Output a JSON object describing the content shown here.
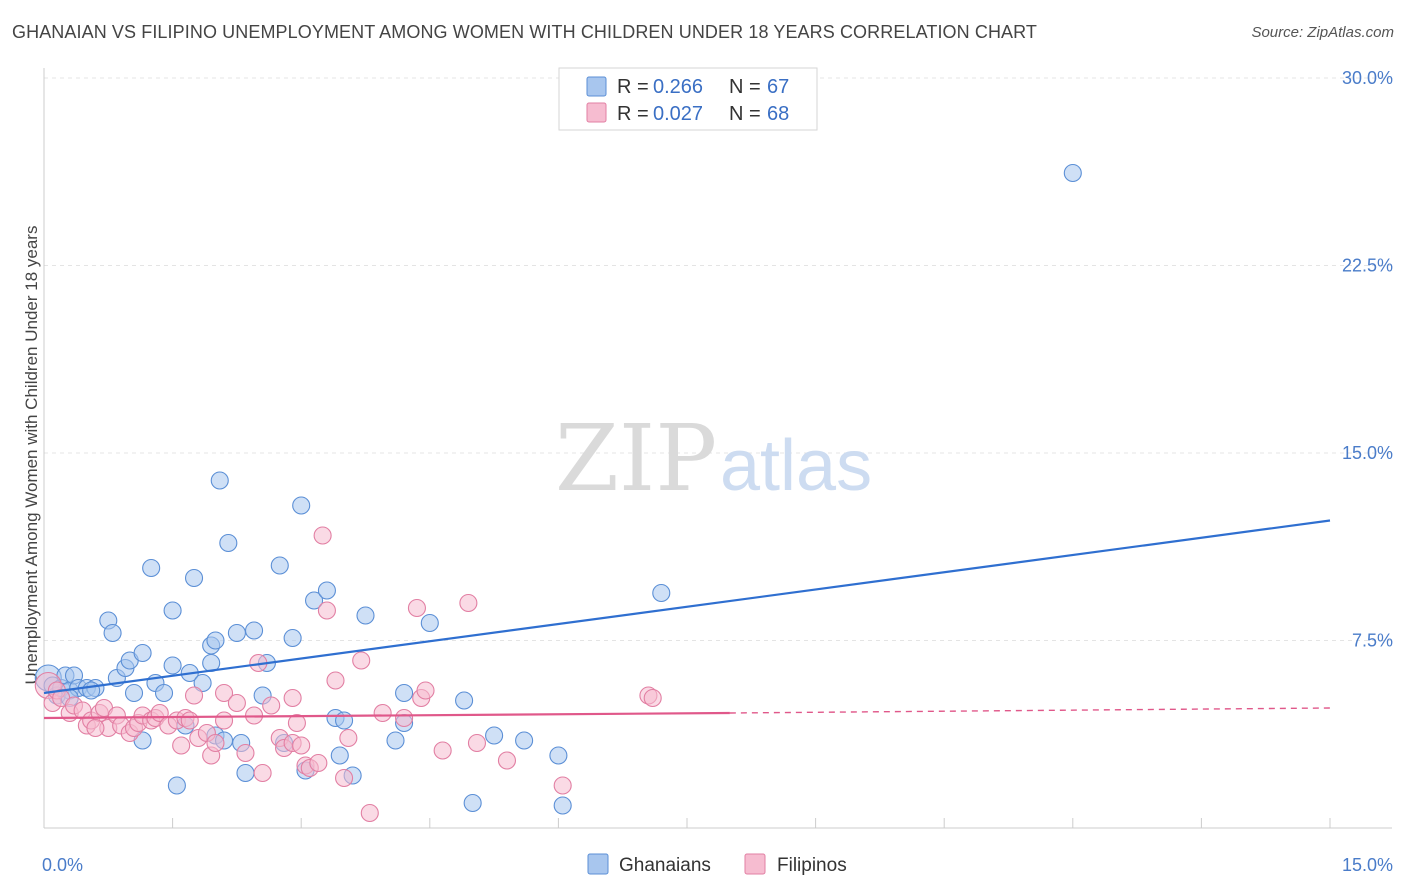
{
  "title": "GHANAIAN VS FILIPINO UNEMPLOYMENT AMONG WOMEN WITH CHILDREN UNDER 18 YEARS CORRELATION CHART",
  "source": "Source: ZipAtlas.com",
  "watermark": {
    "zip": "ZIP",
    "atlas": "atlas"
  },
  "legend": {
    "rows": [
      {
        "r_label": "R =",
        "r_value": "0.266",
        "n_label": "N =",
        "n_value": "67"
      },
      {
        "r_label": "R =",
        "r_value": "0.027",
        "n_label": "N =",
        "n_value": "68"
      }
    ]
  },
  "bottom_legend": [
    "Ghanaians",
    "Filipinos"
  ],
  "colors": {
    "ghanaians_fill": "#a8c6ee",
    "ghanaians_stroke": "#5b8fd6",
    "ghanaians_line": "#2f6fd0",
    "filipinos_fill": "#f6bcd0",
    "filipinos_stroke": "#e27fa3",
    "filipinos_line": "#e0588a",
    "tick_label": "#4a7cc9",
    "grid": "#e4e4e4"
  },
  "chart_data": {
    "type": "scatter",
    "title": "GHANAIAN VS FILIPINO UNEMPLOYMENT AMONG WOMEN WITH CHILDREN UNDER 18 YEARS CORRELATION CHART",
    "xlabel": "",
    "ylabel": "Unemployment Among Women with Children Under 18 years",
    "xlim": [
      0,
      15
    ],
    "ylim": [
      0,
      30
    ],
    "x_ticks": [
      0,
      15
    ],
    "x_tick_labels": [
      "0.0%",
      "15.0%"
    ],
    "y_ticks": [
      7.5,
      15,
      22.5,
      30
    ],
    "y_tick_labels": [
      "7.5%",
      "15.0%",
      "22.5%",
      "30.0%"
    ],
    "grid": true,
    "legend_position": "top-center",
    "series": [
      {
        "name": "Ghanaians",
        "r": 0.266,
        "n": 67,
        "trend": {
          "x": [
            0.0,
            15.0
          ],
          "y": [
            5.4,
            12.3
          ]
        },
        "points": [
          [
            0.05,
            6.0
          ],
          [
            0.1,
            5.7
          ],
          [
            0.15,
            5.3
          ],
          [
            0.2,
            5.6
          ],
          [
            0.25,
            6.1
          ],
          [
            0.3,
            5.5
          ],
          [
            0.35,
            6.1
          ],
          [
            0.4,
            5.6
          ],
          [
            0.5,
            5.6
          ],
          [
            0.6,
            5.6
          ],
          [
            0.75,
            8.3
          ],
          [
            0.8,
            7.8
          ],
          [
            0.85,
            6.0
          ],
          [
            0.95,
            6.4
          ],
          [
            1.0,
            6.7
          ],
          [
            1.05,
            5.4
          ],
          [
            1.15,
            3.5
          ],
          [
            1.15,
            7.0
          ],
          [
            1.25,
            10.4
          ],
          [
            1.3,
            5.8
          ],
          [
            1.4,
            5.4
          ],
          [
            1.5,
            8.7
          ],
          [
            1.5,
            6.5
          ],
          [
            1.55,
            1.7
          ],
          [
            1.65,
            4.1
          ],
          [
            1.7,
            6.2
          ],
          [
            1.75,
            10.0
          ],
          [
            1.85,
            5.8
          ],
          [
            1.95,
            7.3
          ],
          [
            1.95,
            6.6
          ],
          [
            2.0,
            7.5
          ],
          [
            2.0,
            3.7
          ],
          [
            2.05,
            13.9
          ],
          [
            2.1,
            3.5
          ],
          [
            2.15,
            11.4
          ],
          [
            2.25,
            7.8
          ],
          [
            2.3,
            3.4
          ],
          [
            2.35,
            2.2
          ],
          [
            2.45,
            7.9
          ],
          [
            2.55,
            5.3
          ],
          [
            2.6,
            6.6
          ],
          [
            2.75,
            10.5
          ],
          [
            2.8,
            3.4
          ],
          [
            2.9,
            7.6
          ],
          [
            3.0,
            12.9
          ],
          [
            3.05,
            2.3
          ],
          [
            3.15,
            9.1
          ],
          [
            3.3,
            9.5
          ],
          [
            3.4,
            4.4
          ],
          [
            3.45,
            2.9
          ],
          [
            3.5,
            4.3
          ],
          [
            3.6,
            2.1
          ],
          [
            3.75,
            8.5
          ],
          [
            4.1,
            3.5
          ],
          [
            4.2,
            5.4
          ],
          [
            4.2,
            4.2
          ],
          [
            4.5,
            8.2
          ],
          [
            4.9,
            5.1
          ],
          [
            5.0,
            1.0
          ],
          [
            5.25,
            3.7
          ],
          [
            5.6,
            3.5
          ],
          [
            6.0,
            2.9
          ],
          [
            6.05,
            0.9
          ],
          [
            7.2,
            9.4
          ],
          [
            12.0,
            26.2
          ],
          [
            0.55,
            5.5
          ],
          [
            0.3,
            5.2
          ]
        ]
      },
      {
        "name": "Filipinos",
        "r": 0.027,
        "n": 68,
        "trend": {
          "x": [
            0.0,
            8.0
          ],
          "y": [
            4.4,
            4.6
          ]
        },
        "trend_extension": {
          "x": [
            8.0,
            15.0
          ],
          "y": [
            4.6,
            4.8
          ]
        },
        "points": [
          [
            0.05,
            5.7
          ],
          [
            0.1,
            5.0
          ],
          [
            0.15,
            5.5
          ],
          [
            0.2,
            5.2
          ],
          [
            0.3,
            4.6
          ],
          [
            0.35,
            4.9
          ],
          [
            0.45,
            4.7
          ],
          [
            0.5,
            4.1
          ],
          [
            0.55,
            4.3
          ],
          [
            0.65,
            4.6
          ],
          [
            0.7,
            4.8
          ],
          [
            0.75,
            4.0
          ],
          [
            0.85,
            4.5
          ],
          [
            0.9,
            4.1
          ],
          [
            1.0,
            3.8
          ],
          [
            1.05,
            4.0
          ],
          [
            1.1,
            4.2
          ],
          [
            1.15,
            4.5
          ],
          [
            1.25,
            4.3
          ],
          [
            1.3,
            4.4
          ],
          [
            1.35,
            4.6
          ],
          [
            1.45,
            4.1
          ],
          [
            1.55,
            4.3
          ],
          [
            1.6,
            3.3
          ],
          [
            1.65,
            4.4
          ],
          [
            1.7,
            4.3
          ],
          [
            1.75,
            5.3
          ],
          [
            1.8,
            3.6
          ],
          [
            1.9,
            3.8
          ],
          [
            1.95,
            2.9
          ],
          [
            2.0,
            3.4
          ],
          [
            2.1,
            4.3
          ],
          [
            2.1,
            5.4
          ],
          [
            2.25,
            5.0
          ],
          [
            2.35,
            3.0
          ],
          [
            2.45,
            4.5
          ],
          [
            2.5,
            6.6
          ],
          [
            2.55,
            2.2
          ],
          [
            2.65,
            4.9
          ],
          [
            2.75,
            3.6
          ],
          [
            2.8,
            3.2
          ],
          [
            2.9,
            3.4
          ],
          [
            2.9,
            5.2
          ],
          [
            3.0,
            3.3
          ],
          [
            3.05,
            2.5
          ],
          [
            3.1,
            2.4
          ],
          [
            3.2,
            2.6
          ],
          [
            3.25,
            11.7
          ],
          [
            3.3,
            8.7
          ],
          [
            3.4,
            5.9
          ],
          [
            3.5,
            2.0
          ],
          [
            3.55,
            3.6
          ],
          [
            3.7,
            6.7
          ],
          [
            3.8,
            0.6
          ],
          [
            3.95,
            4.6
          ],
          [
            4.2,
            4.4
          ],
          [
            4.35,
            8.8
          ],
          [
            4.4,
            5.2
          ],
          [
            4.45,
            5.5
          ],
          [
            4.65,
            3.1
          ],
          [
            4.95,
            9.0
          ],
          [
            5.05,
            3.4
          ],
          [
            5.4,
            2.7
          ],
          [
            6.05,
            1.7
          ],
          [
            7.05,
            5.3
          ],
          [
            7.1,
            5.2
          ],
          [
            2.95,
            4.2
          ],
          [
            0.6,
            4.0
          ]
        ]
      }
    ]
  }
}
